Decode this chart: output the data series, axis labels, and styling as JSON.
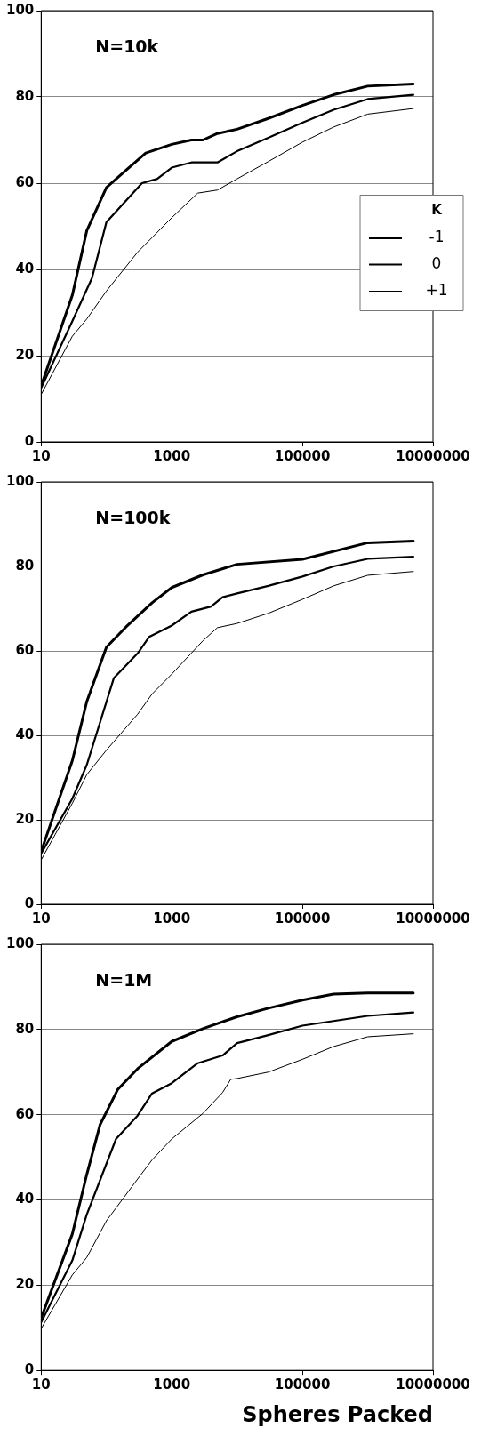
{
  "chart_data": [
    {
      "type": "line",
      "title": "N=10k",
      "log": "x",
      "grid": "y",
      "legend": "right",
      "legend_title": "K",
      "marker": "none",
      "line_style": "solid",
      "xlim": [
        10,
        10000000
      ],
      "xticks": [
        10,
        1000,
        100000,
        10000000
      ],
      "ylim": [
        0,
        100
      ],
      "yticks": [
        0,
        20,
        40,
        60,
        80,
        100
      ],
      "series": [
        {
          "name": "-1",
          "color": "#000000",
          "x": [
            10,
            30,
            50,
            100,
            200,
            400,
            1000,
            2000,
            3000,
            5000,
            10000,
            30000,
            100000,
            300000,
            1000000,
            5000000
          ],
          "values": [
            13,
            34,
            49,
            59,
            63,
            67,
            69,
            70,
            70,
            71.5,
            72.5,
            75,
            78,
            80.5,
            82.5,
            83
          ]
        },
        {
          "name": "0",
          "color": "#000000",
          "x": [
            10,
            30,
            60,
            100,
            350,
            600,
            1000,
            2000,
            5000,
            10000,
            30000,
            100000,
            300000,
            1000000,
            5000000
          ],
          "values": [
            12.5,
            28,
            38,
            51,
            60,
            61,
            63.6,
            64.8,
            64.8,
            67.4,
            70.5,
            74,
            77,
            79.5,
            80.5
          ]
        },
        {
          "name": "+1",
          "color": "#000000",
          "x": [
            10,
            30,
            50,
            100,
            300,
            1000,
            2500,
            5000,
            10000,
            30000,
            100000,
            300000,
            1000000,
            5000000
          ],
          "values": [
            11,
            24.5,
            28.5,
            35,
            44,
            52,
            57.7,
            58.4,
            61,
            65,
            69.5,
            73,
            76,
            77.3
          ]
        }
      ]
    },
    {
      "type": "line",
      "title": "N=100k",
      "log": "x",
      "grid": "y",
      "marker": "none",
      "line_style": "solid",
      "xlim": [
        10,
        10000000
      ],
      "xticks": [
        10,
        1000,
        100000,
        10000000
      ],
      "ylim": [
        0,
        100
      ],
      "yticks": [
        0,
        20,
        40,
        60,
        80,
        100
      ],
      "series": [
        {
          "color": "#000000",
          "x": [
            10,
            30,
            50,
            100,
            200,
            500,
            1000,
            3000,
            10000,
            100000,
            1000000,
            5000000
          ],
          "values": [
            12.5,
            34,
            48,
            60.9,
            65.7,
            71.4,
            75,
            78,
            80.5,
            81.7,
            85.6,
            86
          ]
        },
        {
          "color": "#000000",
          "x": [
            10,
            30,
            50,
            130,
            300,
            450,
            1000,
            2000,
            4000,
            6000,
            10000,
            30000,
            100000,
            300000,
            1000000,
            5000000
          ],
          "values": [
            12,
            25,
            33,
            53.6,
            59.4,
            63.3,
            66,
            69.3,
            70.5,
            72.7,
            73.6,
            75.4,
            77.6,
            80,
            81.8,
            82.3
          ]
        },
        {
          "color": "#000000",
          "x": [
            10,
            30,
            50,
            100,
            300,
            500,
            1000,
            3000,
            5000,
            10000,
            30000,
            100000,
            300000,
            1000000,
            5000000
          ],
          "values": [
            10.5,
            23.9,
            30.7,
            36.5,
            45,
            49.8,
            54.5,
            62.4,
            65.5,
            66.5,
            68.9,
            72.2,
            75.4,
            77.9,
            78.8
          ]
        }
      ]
    },
    {
      "type": "line",
      "title": "N=1M",
      "xlabel": "Spheres Packed",
      "log": "x",
      "grid": "y",
      "marker": "none",
      "line_style": "solid",
      "xlim": [
        10,
        10000000
      ],
      "xticks": [
        10,
        1000,
        100000,
        10000000
      ],
      "ylim": [
        0,
        100
      ],
      "yticks": [
        0,
        20,
        40,
        60,
        80,
        100
      ],
      "series": [
        {
          "color": "#000000",
          "x": [
            10,
            30,
            50,
            80,
            150,
            300,
            1000,
            3000,
            10000,
            30000,
            100000,
            300000,
            1000000,
            5000000
          ],
          "values": [
            12.3,
            32,
            46,
            57.7,
            66,
            70.8,
            77.2,
            80.2,
            83,
            85,
            86.9,
            88.3,
            88.6,
            88.6
          ]
        },
        {
          "color": "#000000",
          "x": [
            10,
            30,
            50,
            140,
            300,
            500,
            1000,
            2500,
            6000,
            10000,
            30000,
            100000,
            1000000,
            5000000
          ],
          "values": [
            11.3,
            25.8,
            36.6,
            54.3,
            59.8,
            65,
            67.4,
            72.1,
            73.9,
            76.8,
            78.7,
            80.9,
            83.2,
            84
          ]
        },
        {
          "color": "#000000",
          "x": [
            10,
            30,
            50,
            100,
            300,
            500,
            1000,
            3000,
            6000,
            8000,
            10000,
            30000,
            100000,
            300000,
            1000000,
            5000000
          ],
          "values": [
            9.8,
            22.4,
            26.5,
            35.1,
            44.9,
            49.4,
            54.3,
            60.3,
            65.2,
            68.3,
            68.5,
            70,
            73,
            76,
            78.3,
            79
          ]
        }
      ]
    }
  ]
}
